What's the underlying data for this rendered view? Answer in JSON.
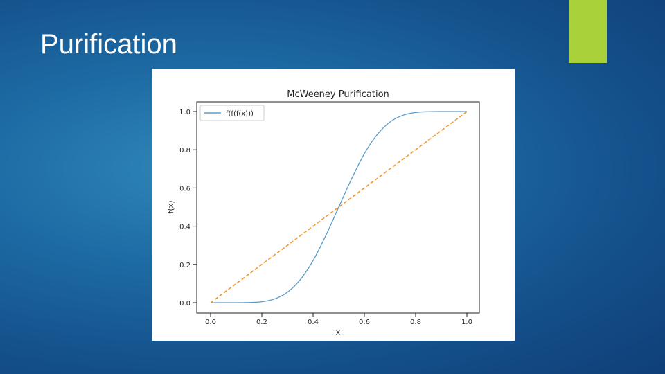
{
  "slide": {
    "title": "Purification",
    "accent_color": "#a8d13a"
  },
  "chart_data": {
    "type": "line",
    "title": "McWeeney Purification",
    "xlabel": "x",
    "ylabel": "f(x)",
    "xlim": [
      0.0,
      1.0
    ],
    "ylim": [
      0.0,
      1.0
    ],
    "x_ticks": [
      "0.0",
      "0.2",
      "0.4",
      "0.6",
      "0.8",
      "1.0"
    ],
    "y_ticks": [
      "0.0",
      "0.2",
      "0.4",
      "0.6",
      "0.8",
      "1.0"
    ],
    "grid": false,
    "legend_position": "top-left",
    "series": [
      {
        "name": "f(f(f(x)))",
        "style": "solid",
        "color": "#5b9bc8",
        "x": [
          0.0,
          0.05,
          0.1,
          0.15,
          0.2,
          0.25,
          0.3,
          0.35,
          0.4,
          0.45,
          0.5,
          0.55,
          0.6,
          0.65,
          0.7,
          0.75,
          0.8,
          0.85,
          0.9,
          0.95,
          1.0
        ],
        "values": [
          0.0,
          0.0,
          0.0,
          0.0008,
          0.005,
          0.0197,
          0.0549,
          0.1208,
          0.2202,
          0.3524,
          0.5,
          0.6476,
          0.7798,
          0.8792,
          0.9451,
          0.9803,
          0.995,
          0.9992,
          1.0,
          1.0,
          1.0
        ]
      },
      {
        "style": "dashed",
        "color": "#f0962e",
        "x": [
          0.0,
          1.0
        ],
        "values": [
          0.0,
          1.0
        ]
      }
    ]
  }
}
